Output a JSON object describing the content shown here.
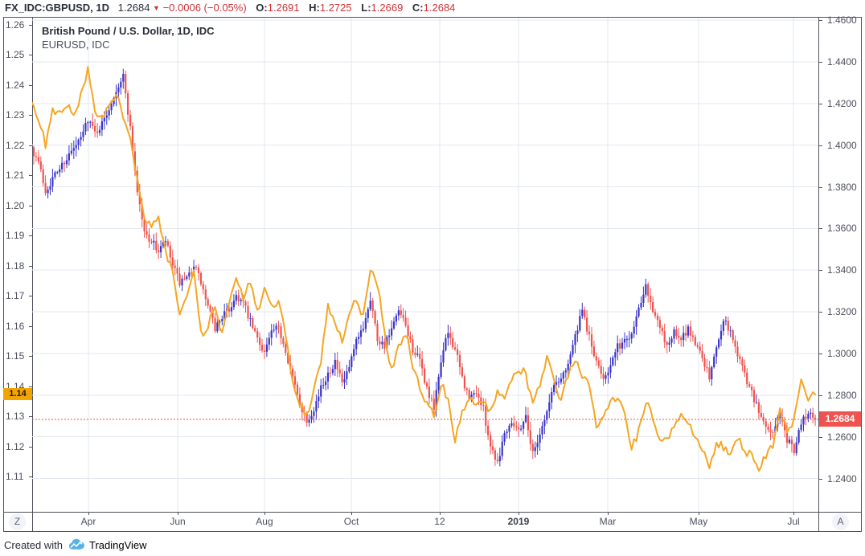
{
  "header": {
    "symbol": "FX_IDC:GBPUSD, 1D",
    "last": "1.2684",
    "direction": "▼",
    "change": "−0.0006 (−0.05%)",
    "ohlc": [
      {
        "label": "O:",
        "value": "1.2691"
      },
      {
        "label": "H:",
        "value": "1.2725"
      },
      {
        "label": "L:",
        "value": "1.2669"
      },
      {
        "label": "C:",
        "value": "1.2684"
      }
    ]
  },
  "legend": {
    "line1": "British Pound / U.S. Dollar, 1D, IDC",
    "line2": "EURUSD, IDC"
  },
  "axes": {
    "left_ticks": [
      "1.26",
      "1.25",
      "1.24",
      "1.23",
      "1.22",
      "1.21",
      "1.20",
      "1.19",
      "1.18",
      "1.17",
      "1.16",
      "1.15",
      "1.14",
      "1.13",
      "1.12",
      "1.11"
    ],
    "right_ticks": [
      "1.4600",
      "1.4400",
      "1.4200",
      "1.4000",
      "1.3800",
      "1.3600",
      "1.3400",
      "1.3200",
      "1.3000",
      "1.2800",
      "1.2600",
      "1.2400"
    ],
    "time_ticks": [
      {
        "label": "Apr",
        "f": 0.0716
      },
      {
        "label": "Jun",
        "f": 0.1851
      },
      {
        "label": "Aug",
        "f": 0.2955
      },
      {
        "label": "Oct",
        "f": 0.406
      },
      {
        "label": "12",
        "f": 0.5184
      },
      {
        "label": "2019",
        "f": 0.6186,
        "bold": true
      },
      {
        "label": "Mar",
        "f": 0.7321
      },
      {
        "label": "May",
        "f": 0.8476
      },
      {
        "label": "Jul",
        "f": 0.9683
      }
    ]
  },
  "badges": {
    "left": {
      "label": "1.14",
      "value": 1.1373
    },
    "right": {
      "label": "1.2684",
      "value": 1.2684
    }
  },
  "buttons": {
    "zoom_reset": "Z",
    "auto_scale": "A"
  },
  "footer": {
    "created_with": "Created with",
    "brand": "TradingView"
  },
  "colors": {
    "up": "#3b35c8",
    "down": "#ef5350",
    "eur_line": "#f5a623",
    "grid": "#e2e7f0",
    "border": "#50535c",
    "axis_text": "#4c505c",
    "dark_text": "#2a2e39",
    "red_text": "#cf3236",
    "price_line": "#ef5350",
    "badge_right_bg": "#ef5350",
    "badge_right_text": "#ffffff",
    "badge_left_bg": "#f2a400",
    "badge_left_text": "#231800",
    "brand_blue": "#55b2e2",
    "button_bg": "#f1f3f8",
    "button_text": "#5d626f"
  },
  "chart_data": {
    "type": "candlestick+line",
    "interval": "1D",
    "x_range": {
      "start": "Feb 2018",
      "end": "Jul 2019"
    },
    "right_scale": {
      "value_at_top": 1.4612,
      "value_at_bottom": 1.224
    },
    "left_scale": {
      "value_at_top": 1.2623,
      "value_at_bottom": 1.0983
    },
    "price_line": {
      "value": 1.2684,
      "style": "dotted"
    },
    "series": [
      {
        "name": "British Pound / U.S. Dollar (GBPUSD), 1D, IDC",
        "type": "candlestick",
        "scale": "right",
        "closes": [
          1.399,
          1.392,
          1.378,
          1.384,
          1.389,
          1.394,
          1.398,
          1.403,
          1.413,
          1.406,
          1.41,
          1.418,
          1.427,
          1.433,
          1.408,
          1.378,
          1.358,
          1.354,
          1.349,
          1.354,
          1.342,
          1.334,
          1.335,
          1.343,
          1.334,
          1.322,
          1.312,
          1.318,
          1.321,
          1.328,
          1.324,
          1.315,
          1.307,
          1.301,
          1.31,
          1.312,
          1.302,
          1.288,
          1.276,
          1.268,
          1.274,
          1.283,
          1.291,
          1.296,
          1.285,
          1.293,
          1.305,
          1.313,
          1.327,
          1.307,
          1.304,
          1.311,
          1.32,
          1.313,
          1.302,
          1.296,
          1.283,
          1.273,
          1.297,
          1.31,
          1.302,
          1.288,
          1.278,
          1.282,
          1.273,
          1.256,
          1.248,
          1.262,
          1.268,
          1.263,
          1.27,
          1.252,
          1.262,
          1.272,
          1.285,
          1.288,
          1.296,
          1.308,
          1.32,
          1.308,
          1.295,
          1.289,
          1.294,
          1.303,
          1.306,
          1.31,
          1.322,
          1.334,
          1.321,
          1.312,
          1.304,
          1.31,
          1.306,
          1.312,
          1.305,
          1.299,
          1.288,
          1.303,
          1.317,
          1.31,
          1.3,
          1.29,
          1.281,
          1.272,
          1.265,
          1.262,
          1.271,
          1.258,
          1.254,
          1.266,
          1.273,
          1.2684
        ]
      },
      {
        "name": "EURUSD, IDC",
        "type": "line",
        "scale": "left",
        "closes": [
          1.234,
          1.229,
          1.22,
          1.231,
          1.23,
          1.234,
          1.229,
          1.236,
          1.245,
          1.23,
          1.228,
          1.233,
          1.238,
          1.229,
          1.221,
          1.208,
          1.196,
          1.192,
          1.196,
          1.184,
          1.178,
          1.165,
          1.17,
          1.178,
          1.157,
          1.16,
          1.166,
          1.157,
          1.168,
          1.175,
          1.169,
          1.175,
          1.164,
          1.172,
          1.166,
          1.169,
          1.156,
          1.141,
          1.134,
          1.131,
          1.138,
          1.148,
          1.168,
          1.16,
          1.155,
          1.163,
          1.169,
          1.163,
          1.178,
          1.174,
          1.158,
          1.145,
          1.153,
          1.158,
          1.147,
          1.139,
          1.135,
          1.131,
          1.141,
          1.136,
          1.122,
          1.131,
          1.137,
          1.133,
          1.135,
          1.131,
          1.138,
          1.136,
          1.141,
          1.146,
          1.144,
          1.134,
          1.14,
          1.15,
          1.141,
          1.136,
          1.144,
          1.148,
          1.144,
          1.141,
          1.127,
          1.13,
          1.134,
          1.137,
          1.131,
          1.119,
          1.125,
          1.135,
          1.13,
          1.122,
          1.122,
          1.126,
          1.13,
          1.128,
          1.124,
          1.119,
          1.113,
          1.121,
          1.12,
          1.117,
          1.123,
          1.118,
          1.117,
          1.113,
          1.117,
          1.12,
          1.133,
          1.124,
          1.129,
          1.141,
          1.136,
          1.1373
        ]
      }
    ]
  }
}
